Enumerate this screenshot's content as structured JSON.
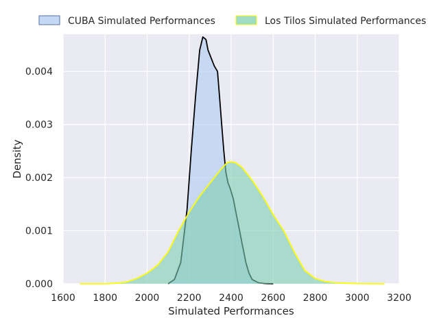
{
  "chart_data": {
    "type": "area",
    "xlabel": "Simulated Performances",
    "ylabel": "Density",
    "xlim": [
      1600,
      3200
    ],
    "ylim": [
      0,
      0.0047
    ],
    "x_ticks": [
      1600,
      1800,
      2000,
      2200,
      2400,
      2600,
      2800,
      3000,
      3200
    ],
    "x_tick_labels": [
      "1600",
      "1800",
      "2000",
      "2200",
      "2400",
      "2600",
      "2800",
      "3000",
      "3200"
    ],
    "y_ticks": [
      0,
      0.001,
      0.002,
      0.003,
      0.004
    ],
    "y_tick_labels": [
      "0.000",
      "0.001",
      "0.002",
      "0.003",
      "0.004"
    ],
    "grid": true,
    "legend_position": "top",
    "series": [
      {
        "name": "CUBA Simulated Performances",
        "fill": "#aecbf2",
        "line": "#000000",
        "x": [
          2100,
          2130,
          2160,
          2190,
          2210,
          2230,
          2250,
          2265,
          2280,
          2290,
          2300,
          2310,
          2320,
          2335,
          2345,
          2355,
          2365,
          2375,
          2385,
          2395,
          2410,
          2420,
          2430,
          2440,
          2450,
          2460,
          2470,
          2485,
          2500,
          2530,
          2560,
          2600
        ],
        "y": [
          0.0,
          8e-05,
          0.0004,
          0.0014,
          0.0025,
          0.0035,
          0.0044,
          0.00465,
          0.0046,
          0.0044,
          0.0043,
          0.0042,
          0.0041,
          0.004,
          0.0035,
          0.003,
          0.0025,
          0.0021,
          0.0019,
          0.0018,
          0.0016,
          0.0014,
          0.0012,
          0.001,
          0.0008,
          0.0006,
          0.0004,
          0.0002,
          8e-05,
          2e-05,
          5e-06,
          0.0
        ]
      },
      {
        "name": "Los Tilos Simulated Performances",
        "fill": "#7fcfb2",
        "line": "#ffff00",
        "x": [
          1680,
          1800,
          1850,
          1900,
          1950,
          2000,
          2050,
          2100,
          2150,
          2200,
          2250,
          2300,
          2350,
          2380,
          2400,
          2420,
          2450,
          2500,
          2550,
          2600,
          2650,
          2700,
          2750,
          2800,
          2850,
          2900,
          2950,
          3000,
          3050,
          3100,
          3130
        ],
        "y": [
          0.0,
          0.0,
          1e-05,
          3e-05,
          0.0001,
          0.0002,
          0.00035,
          0.0006,
          0.001,
          0.00135,
          0.00165,
          0.0019,
          0.00215,
          0.00228,
          0.0023,
          0.00228,
          0.0022,
          0.00195,
          0.00165,
          0.0013,
          0.001,
          0.0006,
          0.00025,
          0.0001,
          4e-05,
          2e-05,
          1e-05,
          4e-06,
          2e-06,
          0.0,
          0.0
        ]
      }
    ]
  }
}
